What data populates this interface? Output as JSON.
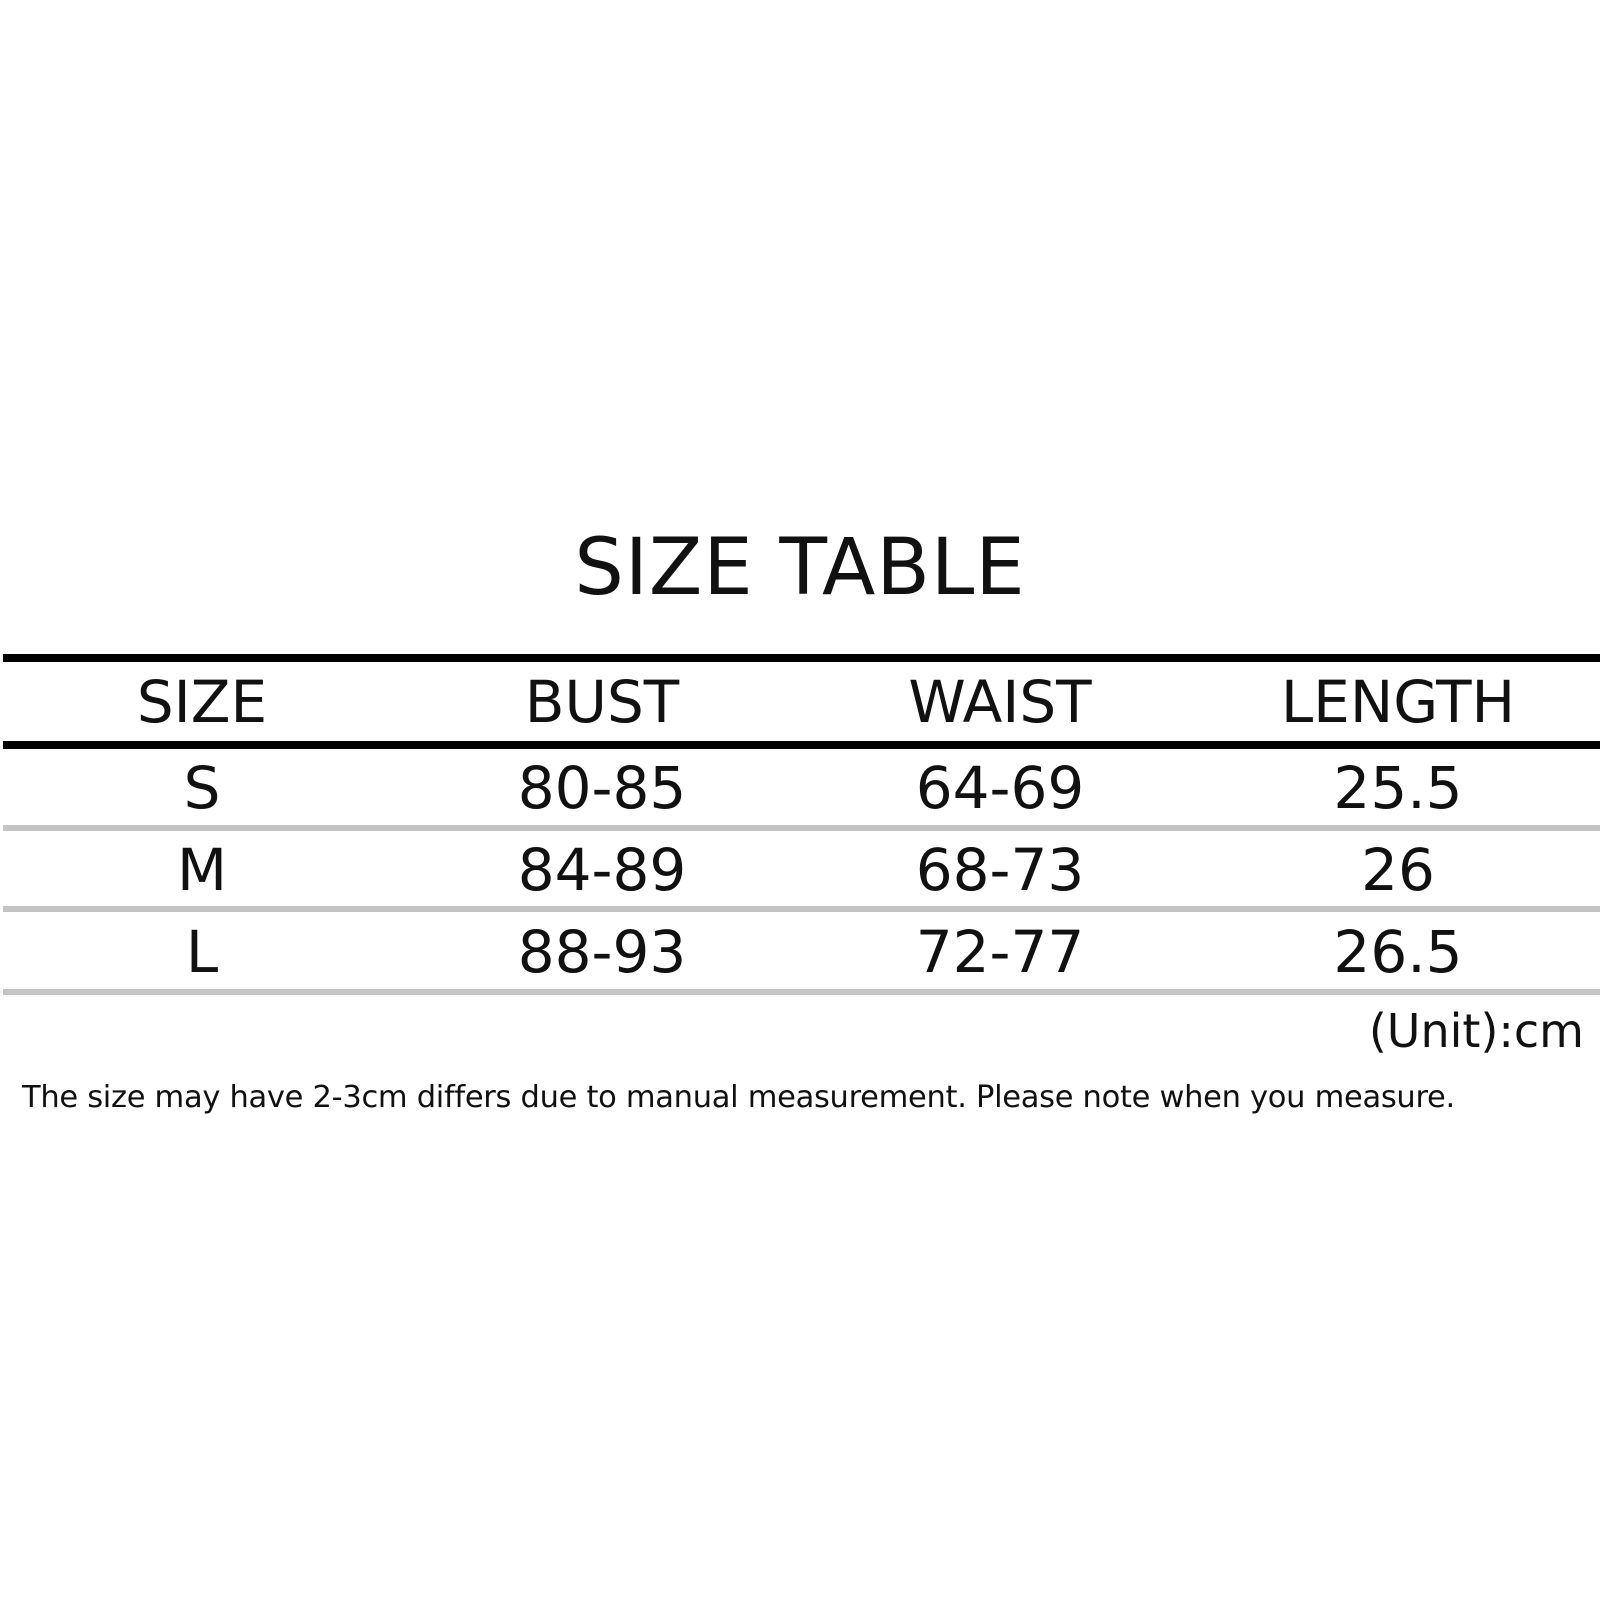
{
  "title": "SIZE TABLE",
  "table": {
    "headers": [
      "SIZE",
      "BUST",
      "WAIST",
      "LENGTH"
    ],
    "rows": [
      [
        "S",
        "80-85",
        "64-69",
        "25.5"
      ],
      [
        "M",
        "84-89",
        "68-73",
        "26"
      ],
      [
        "L",
        "88-93",
        "72-77",
        "26.5"
      ]
    ]
  },
  "unit": "(Unit):cm",
  "note": "The size may have 2-3cm differs due to manual measurement. Please note when you measure."
}
